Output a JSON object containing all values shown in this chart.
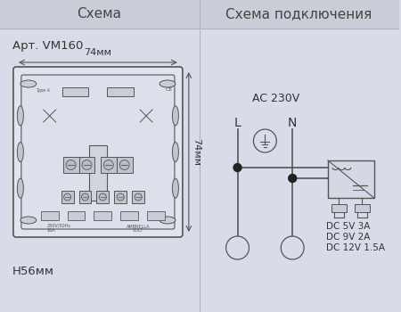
{
  "bg_color": "#d8dce8",
  "header_bg": "#c8cdd8",
  "left_title": "Схема",
  "right_title": "Схема подключения",
  "art_label": "Арт. VM160",
  "dim_width": "74мм",
  "dim_height": "74мм",
  "dim_depth": "Н56мм",
  "ac_label": "AC 230V",
  "L_label": "L",
  "N_label": "N",
  "dc_labels": [
    "DC 5V 3A",
    "DC 9V 2A",
    "DC 12V 1.5A"
  ],
  "line_color": "#555555",
  "dot_color": "#222222",
  "text_color": "#333333",
  "header_text_color": "#444444",
  "body_fill": "#e0e4ee",
  "inner_fill": "#dde0ea",
  "slot_fill": "#c8cdd8",
  "side_fill": "#c0c5d0",
  "term_fill": "#c0c4ce",
  "screw_fill": "#b8bcc8",
  "box_fill": "#d4d8e4",
  "port_fill": "#c8ccd8",
  "divider_color": "#b0b5c0"
}
